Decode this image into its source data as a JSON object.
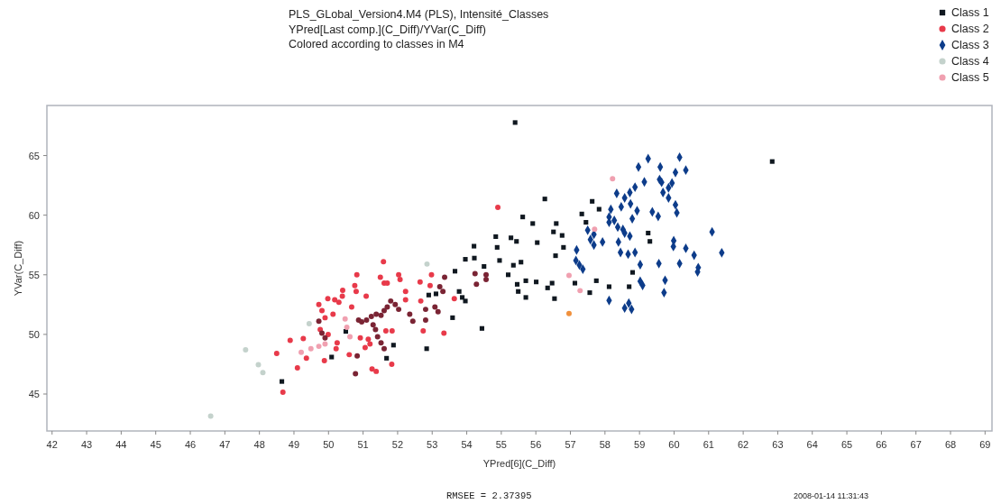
{
  "chart_data": {
    "type": "scatter",
    "title": "PLS_GLobal_Version4.M4 (PLS), Intensité_Classes",
    "subtitle": "YPred[Last comp.](C_Diff)/YVar(C_Diff)\nColored according to classes in M4",
    "xlabel": "YPred[6](C_Diff)",
    "ylabel": "YVar(C_Diff)",
    "xlim": [
      41.85,
      69.2
    ],
    "ylim": [
      41.9,
      69.2
    ],
    "xticks": [
      42,
      43,
      44,
      45,
      46,
      47,
      48,
      49,
      50,
      51,
      52,
      53,
      54,
      55,
      56,
      57,
      58,
      59,
      60,
      61,
      62,
      63,
      64,
      65,
      66,
      67,
      68,
      69
    ],
    "yticks": [
      45,
      50,
      55,
      60,
      65
    ],
    "grid": false,
    "legend": "top right",
    "annotations": [
      "RMSEE = 2.37395",
      "2008-01-14 11:31:43"
    ],
    "series": [
      {
        "name": "Class 1",
        "color": "#101820",
        "marker": "square",
        "x": [
          48.65,
          50.09,
          50.5,
          51.68,
          51.88,
          52.84,
          52.9,
          53.11,
          53.59,
          53.66,
          53.78,
          53.87,
          53.96,
          53.96,
          54.21,
          54.22,
          54.44,
          54.84,
          54.88,
          55.4,
          56.26,
          57.63,
          55.62,
          55.91,
          56.59,
          57.33,
          57.45,
          57.83,
          55.28,
          55.44,
          56.04,
          56.51,
          56.76,
          56.8,
          56.57,
          54.95,
          54.5,
          55.35,
          55.57,
          55.2,
          55.46,
          55.71,
          56.01,
          55.49,
          55.71,
          56.47,
          56.34,
          56.54,
          57.13,
          57.56,
          57.75,
          58.12,
          58.7,
          58.8,
          59.3,
          59.25,
          62.84
        ],
        "values": [
          46.05,
          48.1,
          50.25,
          48.0,
          49.1,
          48.8,
          53.3,
          53.4,
          51.4,
          55.3,
          53.6,
          53.1,
          52.8,
          56.3,
          57.4,
          56.4,
          50.5,
          58.2,
          57.3,
          67.77,
          61.36,
          61.16,
          59.85,
          59.3,
          59.3,
          60.1,
          59.4,
          60.5,
          58.1,
          57.8,
          57.7,
          58.6,
          58.3,
          57.3,
          56.6,
          56.2,
          55.7,
          55.8,
          56.06,
          55.0,
          54.2,
          54.5,
          54.4,
          53.6,
          53.1,
          54.3,
          53.9,
          53.0,
          54.3,
          53.5,
          54.5,
          54.0,
          54.0,
          55.2,
          57.8,
          58.5,
          64.5
        ]
      },
      {
        "name": "Class 2",
        "color": "#e83a4a",
        "marker": "circle",
        "x": [
          48.5,
          48.68,
          48.89,
          49.1,
          49.27,
          49.36,
          49.88,
          49.98,
          50.18,
          50.22,
          50.25,
          50.13,
          50.41,
          50.4,
          50.3,
          50.67,
          50.76,
          50.82,
          50.8,
          50.6,
          50.92,
          51.06,
          51.09,
          51.15,
          51.2,
          51.26,
          51.38,
          51.5,
          51.59,
          51.61,
          51.7,
          51.66,
          51.84,
          51.83,
          52.03,
          52.07,
          52.23,
          52.23,
          52.65,
          52.67,
          52.74,
          52.94,
          52.98,
          53.34,
          53.64,
          49.72,
          49.81,
          49.9,
          49.76,
          49.99,
          54.9
        ],
        "values": [
          48.4,
          45.15,
          49.5,
          47.2,
          49.65,
          48.0,
          47.8,
          53.0,
          52.9,
          48.8,
          49.3,
          51.7,
          53.7,
          53.2,
          52.7,
          52.3,
          54.1,
          55.0,
          53.6,
          48.3,
          49.7,
          48.9,
          53.2,
          49.6,
          49.2,
          47.1,
          46.9,
          54.8,
          56.1,
          54.3,
          54.3,
          50.3,
          50.3,
          47.5,
          55.0,
          54.6,
          53.6,
          52.9,
          54.4,
          52.8,
          50.3,
          54.1,
          55.0,
          50.1,
          53.0,
          52.5,
          52.0,
          51.4,
          50.4,
          50.0,
          60.66
        ]
      },
      {
        "color": "#7a2434",
        "marker": "circle",
        "x": [
          50.87,
          50.96,
          51.1,
          51.24,
          51.38,
          51.52,
          51.61,
          51.7,
          51.8,
          51.93,
          52.03,
          51.36,
          51.42,
          51.52,
          51.61,
          50.83,
          50.78,
          52.35,
          52.44,
          52.81,
          52.81,
          53.08,
          53.17,
          53.22,
          53.36,
          53.31,
          54.24,
          54.28,
          54.56,
          54.56,
          49.72,
          49.81,
          49.9,
          51.29
        ],
        "values": [
          51.2,
          51.05,
          51.2,
          51.5,
          51.7,
          51.6,
          52.0,
          52.3,
          52.8,
          52.5,
          52.1,
          50.4,
          49.8,
          49.3,
          48.8,
          48.2,
          46.7,
          51.7,
          51.1,
          51.2,
          52.1,
          52.3,
          51.9,
          54.0,
          54.8,
          53.6,
          55.1,
          54.2,
          55.0,
          54.6,
          51.1,
          50.1,
          49.7,
          50.8
        ]
      },
      {
        "name": "Class 3",
        "color": "#0d3c8a",
        "marker": "diamond",
        "x": [
          59.25,
          60.16,
          58.97,
          59.6,
          60.04,
          60.34,
          59.14,
          59.58,
          59.64,
          59.94,
          59.84,
          59.68,
          59.84,
          58.87,
          58.72,
          58.57,
          58.34,
          58.47,
          58.74,
          60.04,
          60.08,
          58.17,
          58.93,
          59.37,
          59.54,
          58.12,
          58.27,
          58.12,
          58.79,
          58.37,
          58.52,
          58.57,
          58.72,
          57.5,
          57.68,
          58.39,
          59.99,
          59.98,
          60.34,
          60.58,
          61.1,
          61.38,
          57.18,
          58.45,
          58.67,
          58.87,
          57.16,
          57.26,
          57.36,
          59.02,
          59.56,
          60.16,
          60.7,
          60.68,
          59.02,
          59.09,
          59.74,
          59.71,
          58.12,
          58.57,
          58.69,
          58.77,
          57.68,
          57.58,
          57.93
        ],
        "values": [
          64.74,
          64.86,
          64.04,
          64.04,
          63.58,
          63.78,
          62.79,
          62.99,
          62.76,
          62.7,
          62.3,
          61.9,
          61.45,
          62.35,
          61.9,
          61.45,
          61.83,
          60.7,
          60.95,
          60.87,
          60.2,
          60.49,
          60.37,
          60.28,
          59.9,
          59.85,
          59.56,
          59.4,
          59.7,
          59.0,
          58.8,
          58.5,
          58.24,
          58.74,
          58.39,
          57.75,
          57.86,
          57.37,
          57.22,
          56.64,
          58.6,
          56.85,
          57.08,
          56.87,
          56.73,
          56.87,
          56.2,
          55.82,
          55.47,
          55.85,
          55.94,
          55.94,
          55.6,
          55.24,
          54.46,
          54.11,
          54.54,
          53.5,
          52.85,
          52.21,
          52.62,
          52.1,
          57.5,
          57.95,
          57.75
        ]
      },
      {
        "name": "Class 4",
        "color": "#c4d2cc",
        "marker": "circle",
        "x": [
          47.6,
          47.97,
          48.1,
          46.59,
          52.85,
          49.44
        ],
        "values": [
          48.7,
          47.45,
          46.8,
          43.15,
          55.9,
          50.9
        ]
      },
      {
        "name": "Class 5",
        "color": "#f0a0b0",
        "marker": "circle",
        "x": [
          49.21,
          49.49,
          49.72,
          49.9,
          50.48,
          50.53,
          50.62,
          58.22,
          57.7,
          56.96,
          57.28
        ],
        "values": [
          48.5,
          48.8,
          49.0,
          49.2,
          51.3,
          50.6,
          49.8,
          63.05,
          58.83,
          54.95,
          53.67
        ]
      },
      {
        "color": "#f0903c",
        "marker": "circle",
        "x": [
          56.96
        ],
        "values": [
          51.75
        ]
      }
    ]
  }
}
